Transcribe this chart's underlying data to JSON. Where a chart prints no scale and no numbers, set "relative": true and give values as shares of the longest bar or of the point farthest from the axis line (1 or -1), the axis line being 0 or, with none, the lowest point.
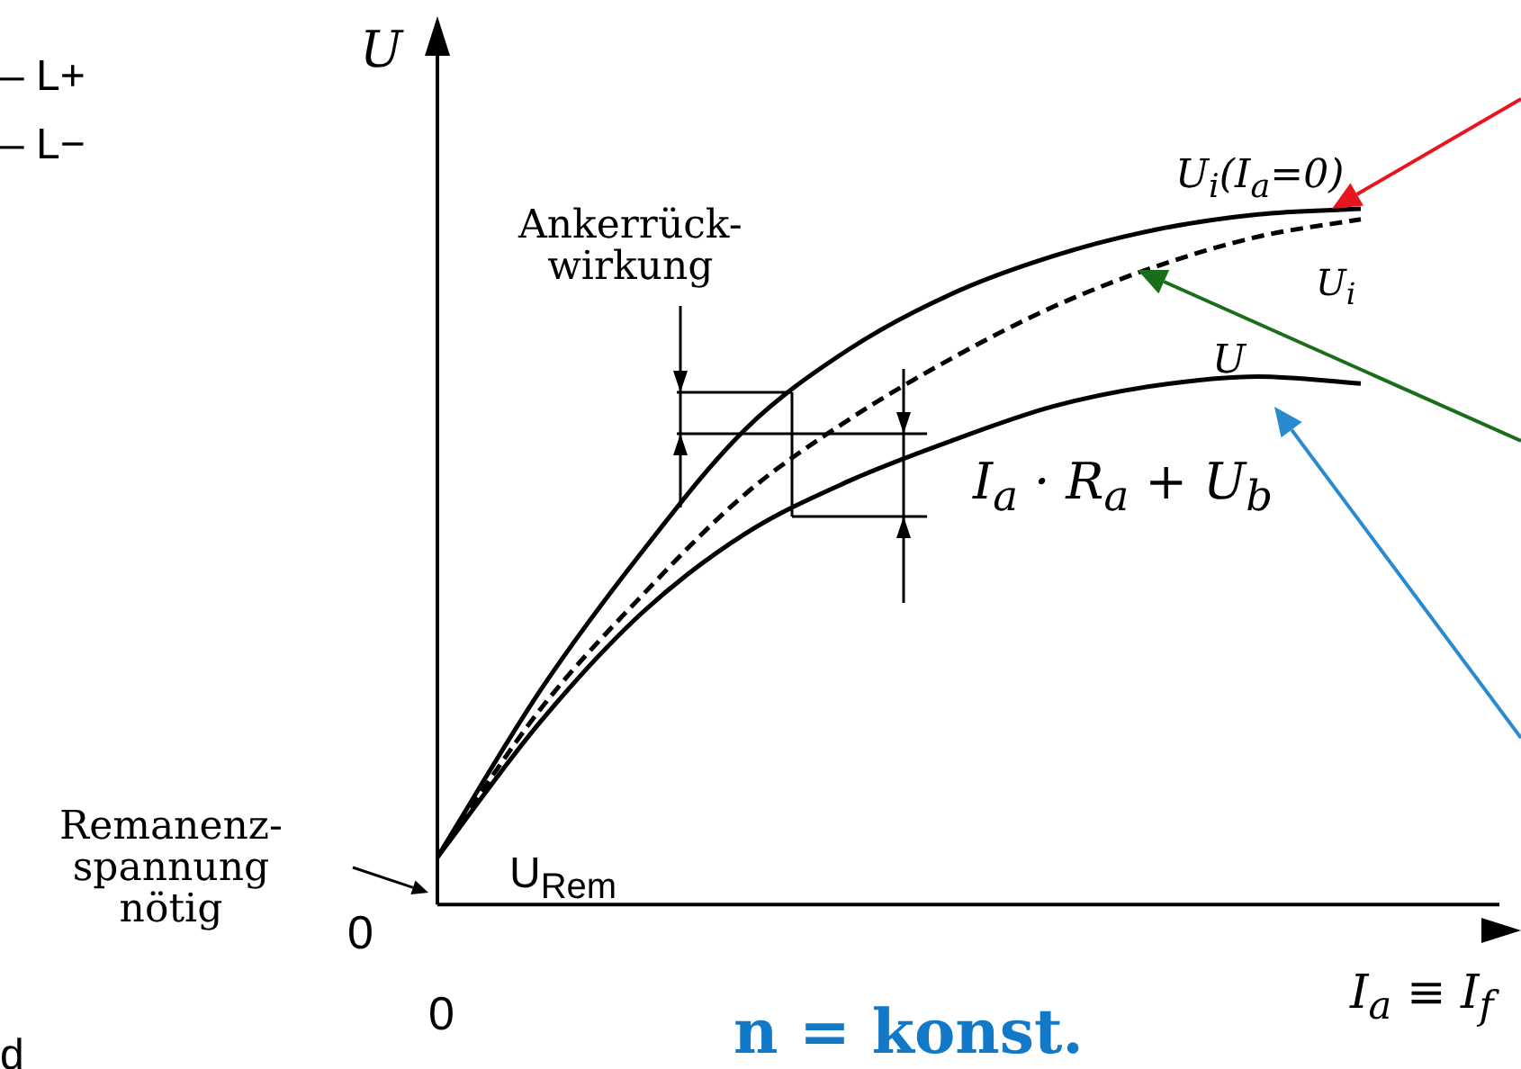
{
  "chart_data": {
    "type": "line",
    "relative": true,
    "xlabel": "I$_{a}$ ≡ I$_{f}$",
    "ylabel": "U",
    "categories": [
      null,
      null,
      null,
      null,
      null,
      null,
      null,
      null,
      null,
      null,
      null
    ],
    "series": [
      {
        "name": "U$_{i}$(I$_{a}$=0)",
        "color": "#000000",
        "line_style": "solid",
        "values": [
          0.068,
          0.307,
          0.508,
          0.683,
          0.797,
          0.877,
          0.932,
          0.97,
          0.992,
          1.0,
          null
        ]
      },
      {
        "name": "U$_{i}$",
        "color": "#000000",
        "line_style": "dashed",
        "values": [
          0.068,
          0.28,
          0.445,
          0.59,
          0.696,
          0.784,
          0.859,
          0.917,
          0.96,
          0.985,
          null
        ]
      },
      {
        "name": "U",
        "color": "#000000",
        "line_style": "solid",
        "values": [
          0.068,
          0.262,
          0.42,
          0.533,
          0.608,
          0.666,
          0.716,
          0.746,
          0.759,
          0.749,
          null
        ]
      }
    ],
    "annotations": [
      "Ankerrück-\nwirkung",
      "I$_{a}$ · R$_{a}$ + U$_{b}$",
      "Remanenz-\nspannung\nnötig",
      "U$_{Rem}$",
      "0",
      "0",
      "n = konst.",
      "– L+",
      "– L−",
      "d"
    ],
    "legend": false,
    "grid": false,
    "marker": "none"
  }
}
